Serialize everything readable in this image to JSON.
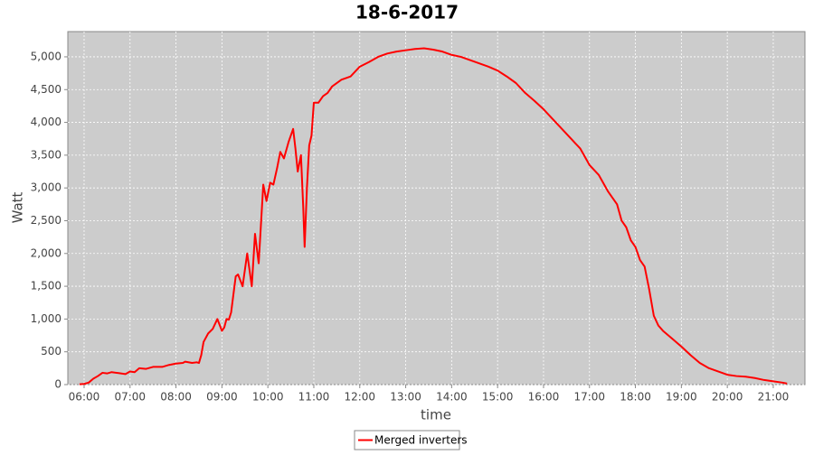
{
  "chart_data": {
    "type": "line",
    "title": "18-6-2017",
    "x_label": "time",
    "y_label": "Watt",
    "x": [
      5.9,
      6.0,
      6.1,
      6.2,
      6.3,
      6.4,
      6.5,
      6.6,
      6.75,
      6.9,
      7.0,
      7.1,
      7.2,
      7.35,
      7.5,
      7.7,
      7.85,
      8.0,
      8.15,
      8.2,
      8.35,
      8.45,
      8.5,
      8.55,
      8.6,
      8.7,
      8.8,
      8.9,
      9.0,
      9.05,
      9.1,
      9.15,
      9.2,
      9.3,
      9.35,
      9.45,
      9.55,
      9.65,
      9.72,
      9.8,
      9.9,
      9.97,
      10.05,
      10.12,
      10.2,
      10.27,
      10.35,
      10.45,
      10.55,
      10.6,
      10.65,
      10.72,
      10.77,
      10.8,
      10.85,
      10.9,
      10.95,
      11.0,
      11.1,
      11.2,
      11.3,
      11.4,
      11.6,
      11.8,
      12.0,
      12.2,
      12.4,
      12.6,
      12.8,
      13.0,
      13.2,
      13.4,
      13.6,
      13.8,
      14.0,
      14.2,
      14.4,
      14.6,
      14.8,
      15.0,
      15.2,
      15.4,
      15.6,
      15.8,
      16.0,
      16.2,
      16.4,
      16.6,
      16.8,
      17.0,
      17.2,
      17.4,
      17.6,
      17.7,
      17.8,
      17.9,
      18.0,
      18.1,
      18.2,
      18.3,
      18.4,
      18.5,
      18.6,
      18.8,
      19.0,
      19.2,
      19.4,
      19.6,
      19.8,
      20.0,
      20.2,
      20.4,
      20.6,
      20.8,
      21.0,
      21.2,
      21.3
    ],
    "series": [
      {
        "name": "Merged inverters",
        "color": "#ff0000",
        "values": [
          5,
          10,
          30,
          90,
          130,
          180,
          170,
          190,
          175,
          160,
          200,
          190,
          250,
          240,
          270,
          270,
          300,
          320,
          330,
          350,
          330,
          340,
          330,
          450,
          650,
          780,
          850,
          1000,
          820,
          870,
          1000,
          990,
          1100,
          1650,
          1680,
          1500,
          2000,
          1500,
          2300,
          1850,
          3050,
          2800,
          3080,
          3050,
          3300,
          3550,
          3450,
          3700,
          3900,
          3600,
          3250,
          3500,
          2700,
          2100,
          3000,
          3650,
          3800,
          4300,
          4300,
          4400,
          4450,
          4550,
          4650,
          4700,
          4850,
          4920,
          5000,
          5050,
          5080,
          5100,
          5120,
          5130,
          5110,
          5080,
          5030,
          5000,
          4950,
          4900,
          4850,
          4790,
          4700,
          4600,
          4450,
          4330,
          4200,
          4050,
          3900,
          3750,
          3600,
          3350,
          3200,
          2950,
          2750,
          2500,
          2400,
          2200,
          2100,
          1900,
          1800,
          1450,
          1050,
          900,
          820,
          700,
          580,
          450,
          330,
          250,
          200,
          150,
          130,
          120,
          100,
          70,
          50,
          30,
          15
        ]
      }
    ],
    "xlim": [
      5.646,
      21.69
    ],
    "xticks": [
      {
        "value": 6,
        "label": "06:00"
      },
      {
        "value": 7,
        "label": "07:00"
      },
      {
        "value": 8,
        "label": "08:00"
      },
      {
        "value": 9,
        "label": "09:00"
      },
      {
        "value": 10,
        "label": "10:00"
      },
      {
        "value": 11,
        "label": "11:00"
      },
      {
        "value": 12,
        "label": "12:00"
      },
      {
        "value": 13,
        "label": "13:00"
      },
      {
        "value": 14,
        "label": "14:00"
      },
      {
        "value": 15,
        "label": "15:00"
      },
      {
        "value": 16,
        "label": "16:00"
      },
      {
        "value": 17,
        "label": "17:00"
      },
      {
        "value": 18,
        "label": "18:00"
      },
      {
        "value": 19,
        "label": "19:00"
      },
      {
        "value": 20,
        "label": "20:00"
      },
      {
        "value": 21,
        "label": "21:00"
      }
    ],
    "ylim": [
      0,
      5385
    ],
    "yticks": [
      0,
      500,
      {
        "value": 1000,
        "label": "1,000"
      },
      {
        "value": 1500,
        "label": "1,500"
      },
      {
        "value": 2000,
        "label": "2,000"
      },
      {
        "value": 2500,
        "label": "2,500"
      },
      {
        "value": 3000,
        "label": "3,000"
      },
      {
        "value": 3500,
        "label": "3,500"
      },
      {
        "value": 4000,
        "label": "4,000"
      },
      {
        "value": 4500,
        "label": "4,500"
      },
      {
        "value": 5000,
        "label": "5,000"
      }
    ],
    "grid": true,
    "legend": "bottom"
  }
}
